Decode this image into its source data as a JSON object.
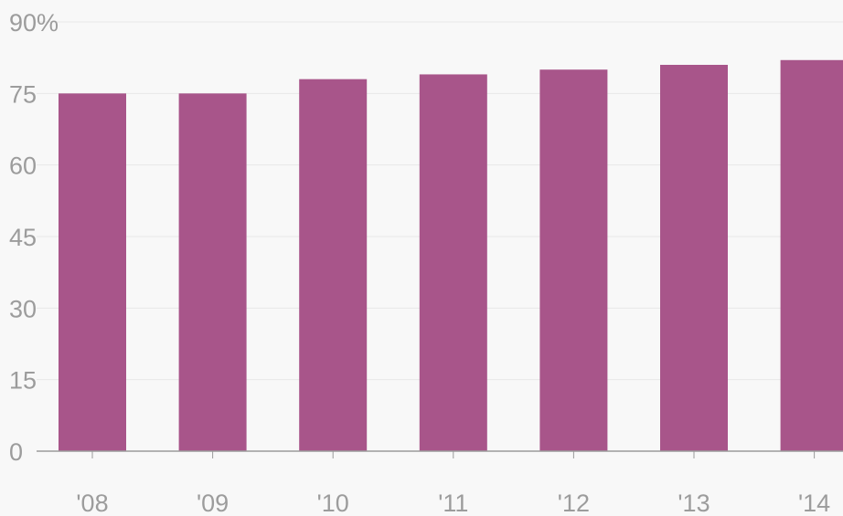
{
  "chart_data": {
    "type": "bar",
    "title": "",
    "xlabel": "",
    "ylabel": "",
    "categories": [
      "'08",
      "'09",
      "'10",
      "'11",
      "'12",
      "'13",
      "'14"
    ],
    "values": [
      75,
      75,
      78,
      79,
      80,
      81,
      82
    ],
    "ylim": [
      0,
      90
    ],
    "yticks": [
      0,
      15,
      30,
      45,
      60,
      75,
      90
    ],
    "ytick_labels": [
      "0",
      "15",
      "30",
      "45",
      "60",
      "75",
      "90%"
    ],
    "bar_color": "#a8558a",
    "grid": true,
    "legend": "none"
  }
}
